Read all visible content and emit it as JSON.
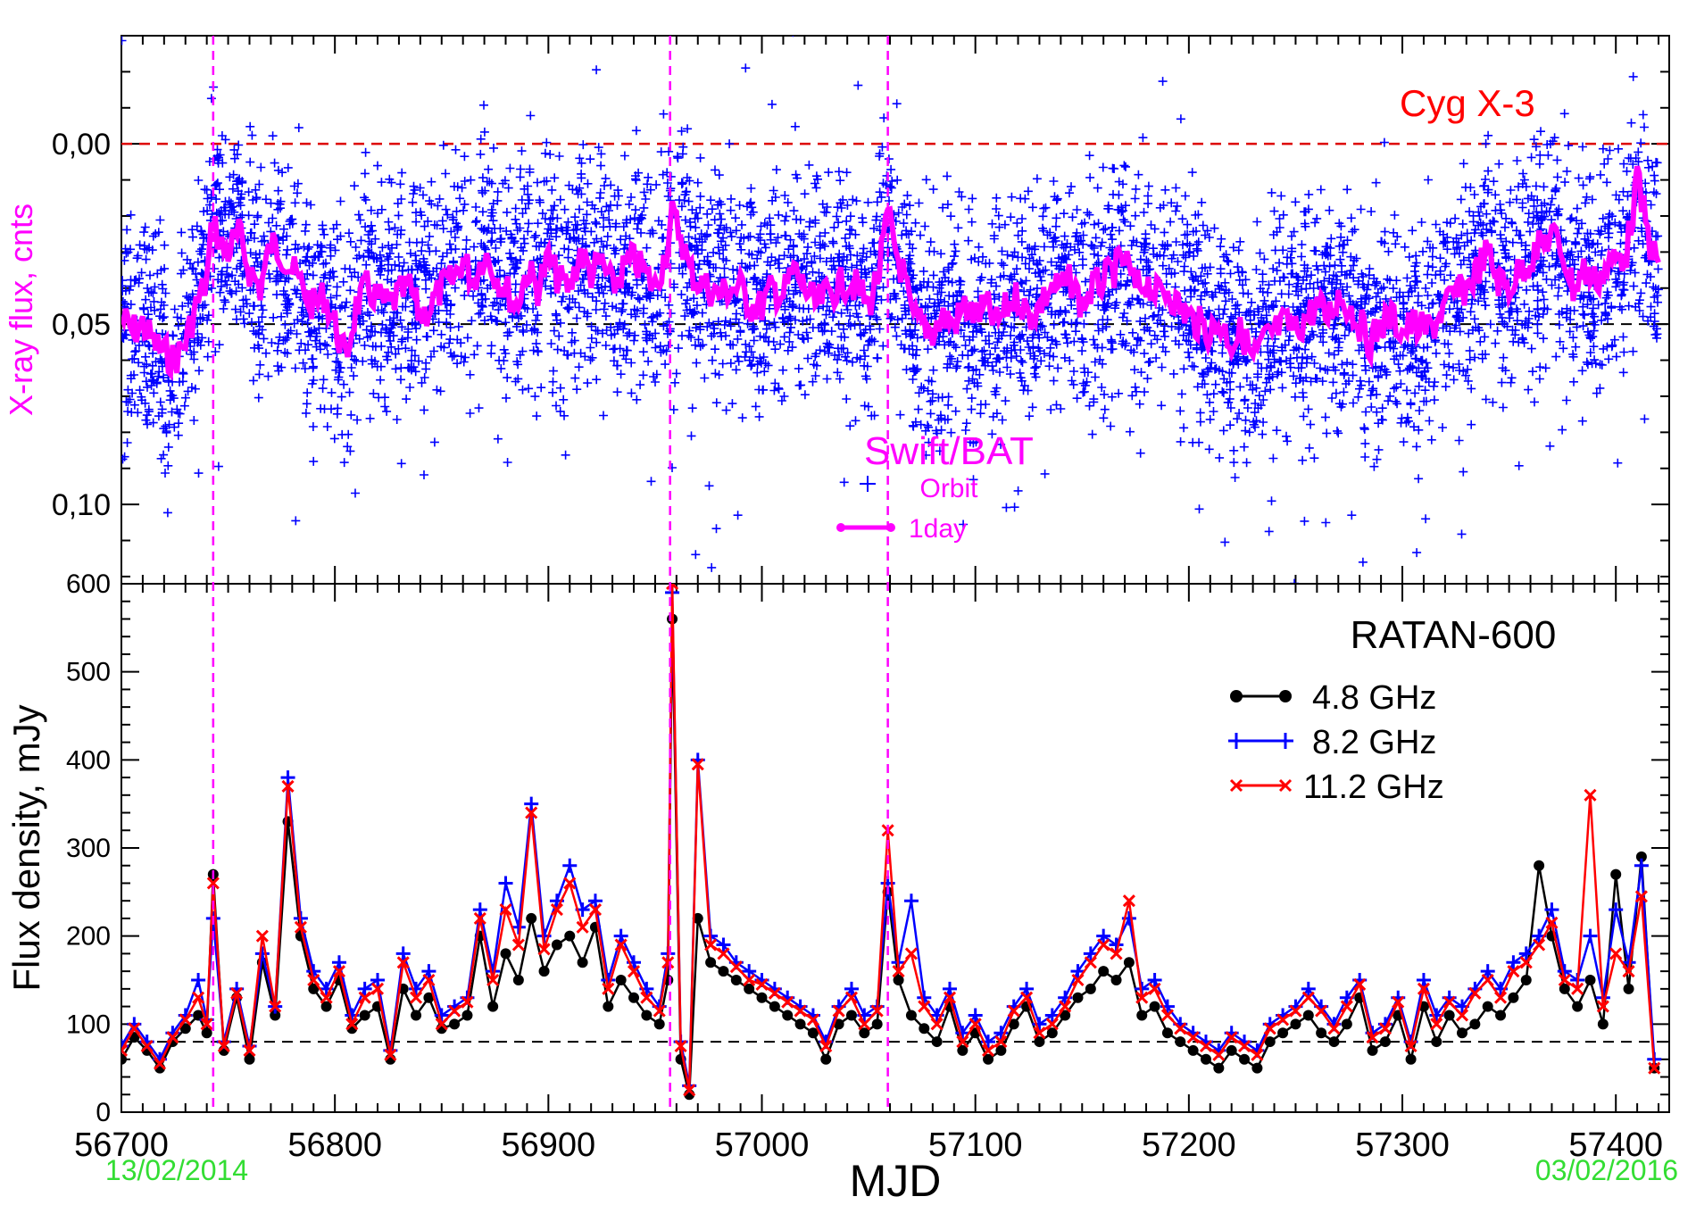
{
  "chart_data": [
    {
      "type": "scatter",
      "source_label": "Cyg X-3",
      "instrument_label": "Swift/BAT",
      "ylabel": "X-ray flux, cnts",
      "y_inverted": true,
      "ylim": [
        -0.03,
        0.122
      ],
      "xlim": [
        56700,
        57425
      ],
      "yticks": [
        0.0,
        0.05,
        0.1
      ],
      "yticklabels": [
        "0,00",
        "0,05",
        "0,10"
      ],
      "reference_line_y": 0.0,
      "mean_line_y": 0.05,
      "legend": [
        {
          "label": "Orbit",
          "marker": "plus",
          "color": "#0000ff"
        },
        {
          "label": "1day",
          "marker": "line",
          "color": "#ff00ff"
        }
      ],
      "flare_markers_mjd": [
        56743,
        56957,
        57059
      ],
      "series": [
        {
          "name": "Orbit",
          "color": "#0000ff",
          "marker": "plus",
          "sampling_note": "dense orbit-by-orbit scatter spread around the 1-day curve, approx. -0.02 to 0.11"
        },
        {
          "name": "1day",
          "color": "#ff00ff",
          "x": [
            56700,
            56705,
            56710,
            56715,
            56720,
            56725,
            56730,
            56735,
            56740,
            56743,
            56746,
            56750,
            56755,
            56760,
            56765,
            56770,
            56775,
            56780,
            56785,
            56790,
            56795,
            56800,
            56805,
            56810,
            56815,
            56820,
            56825,
            56830,
            56835,
            56840,
            56845,
            56850,
            56855,
            56860,
            56865,
            56870,
            56875,
            56880,
            56885,
            56890,
            56895,
            56900,
            56905,
            56910,
            56915,
            56920,
            56925,
            56930,
            56935,
            56940,
            56945,
            56950,
            56955,
            56958,
            56962,
            56966,
            56970,
            56975,
            56980,
            56985,
            56990,
            56995,
            57000,
            57005,
            57010,
            57015,
            57020,
            57025,
            57030,
            57035,
            57040,
            57045,
            57050,
            57055,
            57059,
            57063,
            57067,
            57070,
            57075,
            57080,
            57085,
            57090,
            57095,
            57100,
            57105,
            57110,
            57115,
            57120,
            57125,
            57130,
            57135,
            57140,
            57145,
            57150,
            57155,
            57160,
            57165,
            57170,
            57175,
            57180,
            57185,
            57190,
            57195,
            57200,
            57205,
            57210,
            57215,
            57220,
            57225,
            57230,
            57235,
            57240,
            57245,
            57250,
            57255,
            57260,
            57265,
            57270,
            57275,
            57280,
            57285,
            57290,
            57295,
            57300,
            57305,
            57310,
            57315,
            57320,
            57325,
            57330,
            57335,
            57340,
            57345,
            57350,
            57355,
            57360,
            57365,
            57370,
            57375,
            57380,
            57385,
            57390,
            57395,
            57400,
            57405,
            57410,
            57415,
            57420
          ],
          "y": [
            0.048,
            0.052,
            0.05,
            0.055,
            0.058,
            0.06,
            0.055,
            0.045,
            0.038,
            0.02,
            0.028,
            0.03,
            0.025,
            0.035,
            0.04,
            0.028,
            0.03,
            0.035,
            0.04,
            0.045,
            0.042,
            0.05,
            0.06,
            0.045,
            0.04,
            0.043,
            0.045,
            0.042,
            0.04,
            0.048,
            0.045,
            0.04,
            0.038,
            0.032,
            0.038,
            0.03,
            0.036,
            0.04,
            0.045,
            0.035,
            0.04,
            0.032,
            0.038,
            0.04,
            0.03,
            0.036,
            0.033,
            0.04,
            0.035,
            0.032,
            0.036,
            0.04,
            0.03,
            0.02,
            0.025,
            0.035,
            0.038,
            0.04,
            0.042,
            0.04,
            0.04,
            0.045,
            0.045,
            0.04,
            0.042,
            0.035,
            0.04,
            0.045,
            0.042,
            0.04,
            0.038,
            0.04,
            0.045,
            0.035,
            0.02,
            0.03,
            0.038,
            0.048,
            0.05,
            0.052,
            0.048,
            0.05,
            0.045,
            0.048,
            0.045,
            0.05,
            0.045,
            0.042,
            0.048,
            0.045,
            0.04,
            0.04,
            0.038,
            0.045,
            0.04,
            0.038,
            0.035,
            0.032,
            0.04,
            0.038,
            0.042,
            0.04,
            0.045,
            0.048,
            0.05,
            0.052,
            0.05,
            0.055,
            0.052,
            0.06,
            0.055,
            0.052,
            0.05,
            0.052,
            0.048,
            0.045,
            0.048,
            0.042,
            0.045,
            0.05,
            0.055,
            0.05,
            0.048,
            0.052,
            0.05,
            0.052,
            0.05,
            0.045,
            0.042,
            0.04,
            0.035,
            0.03,
            0.038,
            0.04,
            0.035,
            0.032,
            0.028,
            0.025,
            0.03,
            0.04,
            0.035,
            0.038,
            0.035,
            0.032,
            0.03,
            0.01,
            0.025,
            0.035
          ]
        }
      ]
    },
    {
      "type": "line",
      "title": "RATAN-600",
      "xlabel": "MJD",
      "ylabel": "Flux density, mJy",
      "xlim": [
        56700,
        57425
      ],
      "ylim": [
        0,
        600
      ],
      "xticks": [
        56700,
        56800,
        56900,
        57000,
        57100,
        57200,
        57300,
        57400
      ],
      "yticks": [
        0,
        100,
        200,
        300,
        400,
        500,
        600
      ],
      "mean_line_y": 80,
      "date_labels": {
        "start": "13/02/2014",
        "end": "03/02/2016"
      },
      "flare_markers_mjd": [
        56743,
        56957,
        57059
      ],
      "legend_position": "top-right",
      "x": [
        56700,
        56706,
        56712,
        56718,
        56724,
        56730,
        56736,
        56740,
        56743,
        56748,
        56754,
        56760,
        56766,
        56772,
        56778,
        56784,
        56790,
        56796,
        56802,
        56808,
        56814,
        56820,
        56826,
        56832,
        56838,
        56844,
        56850,
        56856,
        56862,
        56868,
        56874,
        56880,
        56886,
        56892,
        56898,
        56904,
        56910,
        56916,
        56922,
        56928,
        56934,
        56940,
        56946,
        56952,
        56956,
        56958,
        56962,
        56966,
        56970,
        56976,
        56982,
        56988,
        56994,
        57000,
        57006,
        57012,
        57018,
        57024,
        57030,
        57036,
        57042,
        57048,
        57054,
        57059,
        57064,
        57070,
        57076,
        57082,
        57088,
        57094,
        57100,
        57106,
        57112,
        57118,
        57124,
        57130,
        57136,
        57142,
        57148,
        57154,
        57160,
        57166,
        57172,
        57178,
        57184,
        57190,
        57196,
        57202,
        57208,
        57214,
        57220,
        57226,
        57232,
        57238,
        57244,
        57250,
        57256,
        57262,
        57268,
        57274,
        57280,
        57286,
        57292,
        57298,
        57304,
        57310,
        57316,
        57322,
        57328,
        57334,
        57340,
        57346,
        57352,
        57358,
        57364,
        57370,
        57376,
        57382,
        57388,
        57394,
        57400,
        57406,
        57412,
        57418
      ],
      "series": [
        {
          "name": "4.8 GHz",
          "color": "#000000",
          "marker": "circle",
          "values": [
            60,
            85,
            70,
            50,
            80,
            95,
            110,
            90,
            270,
            70,
            130,
            60,
            170,
            110,
            330,
            200,
            140,
            120,
            150,
            95,
            110,
            120,
            60,
            140,
            110,
            130,
            95,
            100,
            110,
            200,
            120,
            180,
            150,
            220,
            160,
            190,
            200,
            170,
            210,
            120,
            150,
            130,
            110,
            100,
            150,
            560,
            60,
            20,
            220,
            170,
            160,
            150,
            140,
            130,
            120,
            110,
            100,
            90,
            60,
            100,
            110,
            90,
            100,
            250,
            150,
            110,
            95,
            80,
            120,
            70,
            90,
            60,
            70,
            100,
            120,
            80,
            90,
            110,
            130,
            140,
            160,
            150,
            170,
            110,
            120,
            90,
            80,
            70,
            60,
            50,
            70,
            60,
            50,
            80,
            90,
            100,
            110,
            90,
            80,
            100,
            130,
            70,
            80,
            110,
            60,
            120,
            80,
            110,
            90,
            100,
            120,
            110,
            130,
            150,
            280,
            200,
            140,
            120,
            150,
            100,
            270,
            140,
            290,
            50
          ]
        },
        {
          "name": "8.2 GHz",
          "color": "#0000ff",
          "marker": "plus",
          "values": [
            75,
            100,
            80,
            60,
            90,
            110,
            150,
            105,
            220,
            80,
            140,
            75,
            180,
            120,
            380,
            220,
            160,
            140,
            170,
            110,
            140,
            150,
            70,
            180,
            140,
            160,
            110,
            120,
            130,
            230,
            160,
            260,
            210,
            350,
            200,
            240,
            280,
            230,
            240,
            150,
            200,
            170,
            140,
            120,
            180,
            590,
            80,
            30,
            400,
            200,
            190,
            170,
            160,
            150,
            140,
            130,
            120,
            110,
            80,
            120,
            140,
            110,
            120,
            260,
            170,
            240,
            130,
            110,
            140,
            90,
            110,
            80,
            90,
            120,
            140,
            100,
            110,
            130,
            160,
            180,
            200,
            190,
            220,
            140,
            150,
            120,
            100,
            90,
            80,
            70,
            90,
            80,
            70,
            100,
            110,
            120,
            140,
            120,
            100,
            130,
            150,
            90,
            100,
            130,
            80,
            150,
            110,
            130,
            120,
            140,
            160,
            140,
            170,
            180,
            200,
            230,
            160,
            150,
            200,
            130,
            230,
            170,
            280,
            60
          ]
        },
        {
          "name": "11.2 GHz",
          "color": "#ff0000",
          "marker": "x",
          "values": [
            70,
            95,
            75,
            55,
            85,
            105,
            130,
            100,
            260,
            75,
            135,
            70,
            200,
            120,
            370,
            210,
            150,
            130,
            160,
            100,
            130,
            140,
            65,
            170,
            130,
            150,
            100,
            115,
            125,
            220,
            150,
            230,
            190,
            340,
            185,
            230,
            260,
            210,
            230,
            140,
            190,
            160,
            130,
            115,
            170,
            600,
            75,
            25,
            395,
            190,
            180,
            165,
            150,
            145,
            135,
            125,
            115,
            105,
            75,
            115,
            130,
            100,
            115,
            320,
            160,
            180,
            120,
            100,
            130,
            80,
            100,
            70,
            80,
            115,
            130,
            90,
            100,
            120,
            150,
            170,
            190,
            180,
            240,
            130,
            140,
            110,
            95,
            85,
            75,
            65,
            85,
            75,
            65,
            95,
            105,
            115,
            130,
            115,
            95,
            120,
            145,
            85,
            95,
            125,
            75,
            140,
            100,
            125,
            110,
            135,
            150,
            130,
            160,
            170,
            190,
            215,
            150,
            140,
            360,
            120,
            180,
            160,
            245,
            50
          ]
        }
      ]
    }
  ]
}
